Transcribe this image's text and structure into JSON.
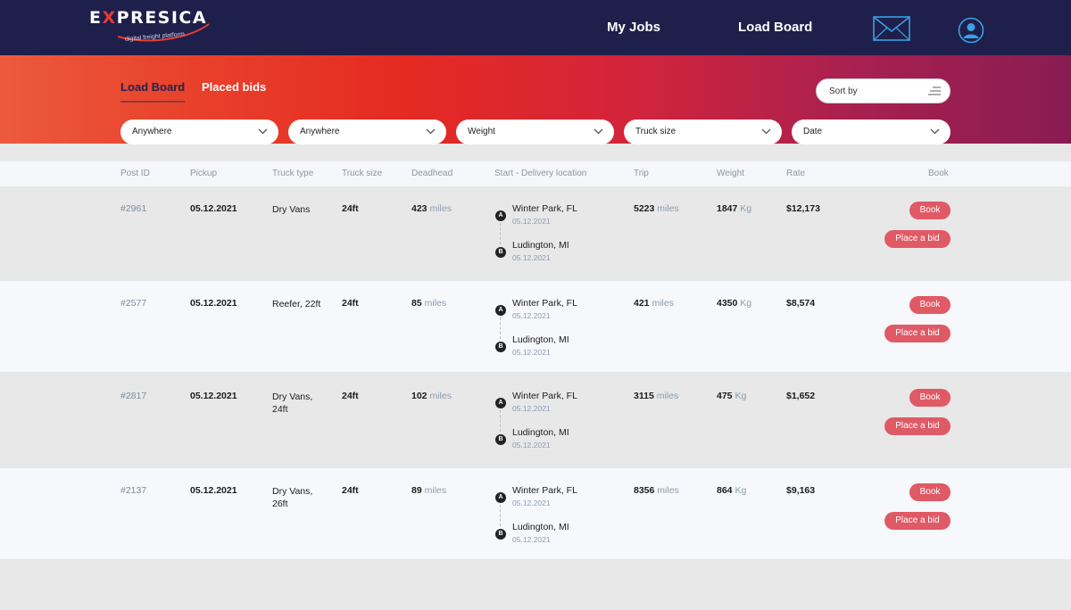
{
  "brand": {
    "name_prefix": "E",
    "name_x": "X",
    "name_rest": "PRESICA",
    "tagline": "digital freight platform"
  },
  "nav": {
    "my_jobs": "My Jobs",
    "load_board": "Load Board",
    "mail_icon": "envelope-icon",
    "user_icon": "user-circle-icon"
  },
  "tabs": {
    "load_board": "Load Board",
    "placed_bids": "Placed bids"
  },
  "sort": {
    "label": "Sort by",
    "icon": "sort-lines-icon"
  },
  "filters": [
    {
      "value": "Anywhere"
    },
    {
      "value": "Anywhere"
    },
    {
      "value": "Weight"
    },
    {
      "value": "Truck size"
    },
    {
      "value": "Date"
    }
  ],
  "columns": {
    "post_id": "Post ID",
    "pickup": "Pickup",
    "truck_type": "Truck type",
    "truck_size": "Truck size",
    "deadhead": "Deadhead",
    "location": "Start - Delivery location",
    "trip": "Trip",
    "weight": "Weight",
    "rate": "Rate",
    "book": "Book"
  },
  "units": {
    "miles": "miles",
    "kg": "Kg"
  },
  "badges": {
    "a": "A",
    "b": "B"
  },
  "buttons": {
    "book": "Book",
    "bid": "Place a bid"
  },
  "loads": [
    {
      "id": "#2961",
      "pickup": "05.12.2021",
      "truck_type": "Dry Vans",
      "truck_size": "24ft",
      "deadhead": "423",
      "start_city": "Winter Park, FL",
      "start_date": "05.12.2021",
      "end_city": "Ludington, MI",
      "end_date": "05.12.2021",
      "trip": "5223",
      "weight": "1847",
      "rate": "$12,173"
    },
    {
      "id": "#2577",
      "pickup": "05.12.2021",
      "truck_type": "Reefer, 22ft",
      "truck_size": "24ft",
      "deadhead": "85",
      "start_city": "Winter Park, FL",
      "start_date": "05.12.2021",
      "end_city": "Ludington, MI",
      "end_date": "05.12.2021",
      "trip": "421",
      "weight": "4350",
      "rate": "$8,574"
    },
    {
      "id": "#2817",
      "pickup": "05.12.2021",
      "truck_type": "Dry Vans, 24ft",
      "truck_size": "24ft",
      "deadhead": "102",
      "start_city": "Winter Park, FL",
      "start_date": "05.12.2021",
      "end_city": "Ludington, MI",
      "end_date": "05.12.2021",
      "trip": "3115",
      "weight": "475",
      "rate": "$1,652"
    },
    {
      "id": "#2137",
      "pickup": "05.12.2021",
      "truck_type": "Dry Vans, 26ft",
      "truck_size": "24ft",
      "deadhead": "89",
      "start_city": "Winter Park, FL",
      "start_date": "05.12.2021",
      "end_city": "Ludington, MI",
      "end_date": "05.12.2021",
      "trip": "8356",
      "weight": "864",
      "rate": "$9,163"
    }
  ]
}
